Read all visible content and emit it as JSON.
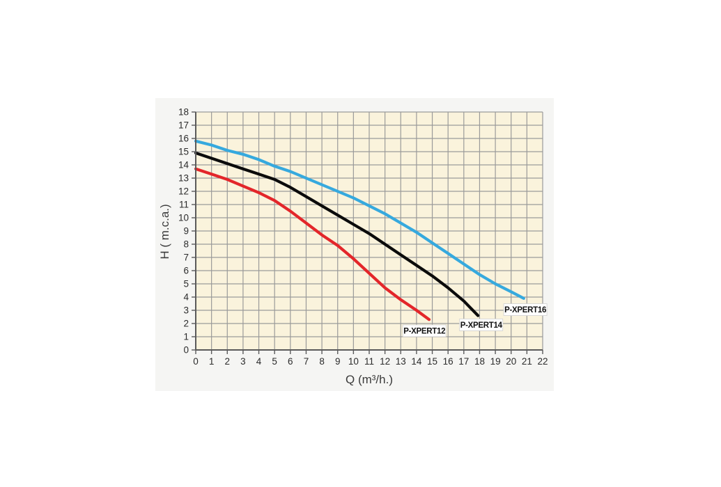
{
  "chart_data": {
    "type": "line",
    "title": "",
    "xlabel": "Q (m³/h.)",
    "ylabel": "H ( m.c.a.)",
    "xlim": [
      0,
      22
    ],
    "ylim": [
      0,
      18
    ],
    "x_ticks": [
      0,
      1,
      2,
      3,
      4,
      5,
      6,
      7,
      8,
      9,
      10,
      11,
      12,
      13,
      14,
      15,
      16,
      17,
      18,
      19,
      20,
      21,
      22
    ],
    "y_ticks": [
      0,
      1,
      2,
      3,
      4,
      5,
      6,
      7,
      8,
      9,
      10,
      11,
      12,
      13,
      14,
      15,
      16,
      17,
      18
    ],
    "grid": true,
    "legend_position": "inline-labels",
    "series": [
      {
        "name": "P-XPERT12",
        "color": "#E3262A",
        "points": [
          [
            0,
            13.7
          ],
          [
            1,
            13.3
          ],
          [
            2,
            12.9
          ],
          [
            3,
            12.4
          ],
          [
            4,
            11.9
          ],
          [
            5,
            11.3
          ],
          [
            6,
            10.5
          ],
          [
            7,
            9.6
          ],
          [
            8,
            8.7
          ],
          [
            9,
            7.9
          ],
          [
            10,
            6.9
          ],
          [
            11,
            5.8
          ],
          [
            12,
            4.7
          ],
          [
            13,
            3.8
          ],
          [
            14,
            3.0
          ],
          [
            14.8,
            2.3
          ]
        ],
        "label_at": [
          14.5,
          1.45
        ]
      },
      {
        "name": "P-XPERT14",
        "color": "#0B0B0B",
        "points": [
          [
            0,
            14.9
          ],
          [
            1,
            14.5
          ],
          [
            2,
            14.1
          ],
          [
            3,
            13.7
          ],
          [
            4,
            13.3
          ],
          [
            5,
            12.9
          ],
          [
            6,
            12.3
          ],
          [
            7,
            11.6
          ],
          [
            8,
            10.9
          ],
          [
            9,
            10.2
          ],
          [
            10,
            9.5
          ],
          [
            11,
            8.8
          ],
          [
            12,
            8.0
          ],
          [
            13,
            7.2
          ],
          [
            14,
            6.4
          ],
          [
            15,
            5.6
          ],
          [
            16,
            4.7
          ],
          [
            17,
            3.7
          ],
          [
            17.9,
            2.6
          ]
        ],
        "label_at": [
          18.1,
          1.9
        ]
      },
      {
        "name": "P-XPERT16",
        "color": "#36A9DE",
        "points": [
          [
            0,
            15.8
          ],
          [
            1,
            15.5
          ],
          [
            2,
            15.1
          ],
          [
            3,
            14.8
          ],
          [
            4,
            14.4
          ],
          [
            5,
            13.9
          ],
          [
            6,
            13.5
          ],
          [
            7,
            13.0
          ],
          [
            8,
            12.5
          ],
          [
            9,
            12.0
          ],
          [
            10,
            11.5
          ],
          [
            11,
            10.9
          ],
          [
            12,
            10.3
          ],
          [
            13,
            9.6
          ],
          [
            14,
            8.9
          ],
          [
            15,
            8.1
          ],
          [
            16,
            7.3
          ],
          [
            17,
            6.5
          ],
          [
            18,
            5.7
          ],
          [
            19,
            5.0
          ],
          [
            20,
            4.4
          ],
          [
            20.8,
            3.9
          ]
        ],
        "label_at": [
          20.9,
          3.05
        ]
      }
    ],
    "colors": {
      "plot_background": "#FAF3DC",
      "panel_background": "#f5f5f3",
      "grid_line": "#9A9A9A",
      "axis_line": "#5a5a5a",
      "tick_text": "#2b2b2b",
      "label_box_fill": "#FFFFFF",
      "label_box_border": "#d0d0d0",
      "label_text": "#111111"
    }
  }
}
